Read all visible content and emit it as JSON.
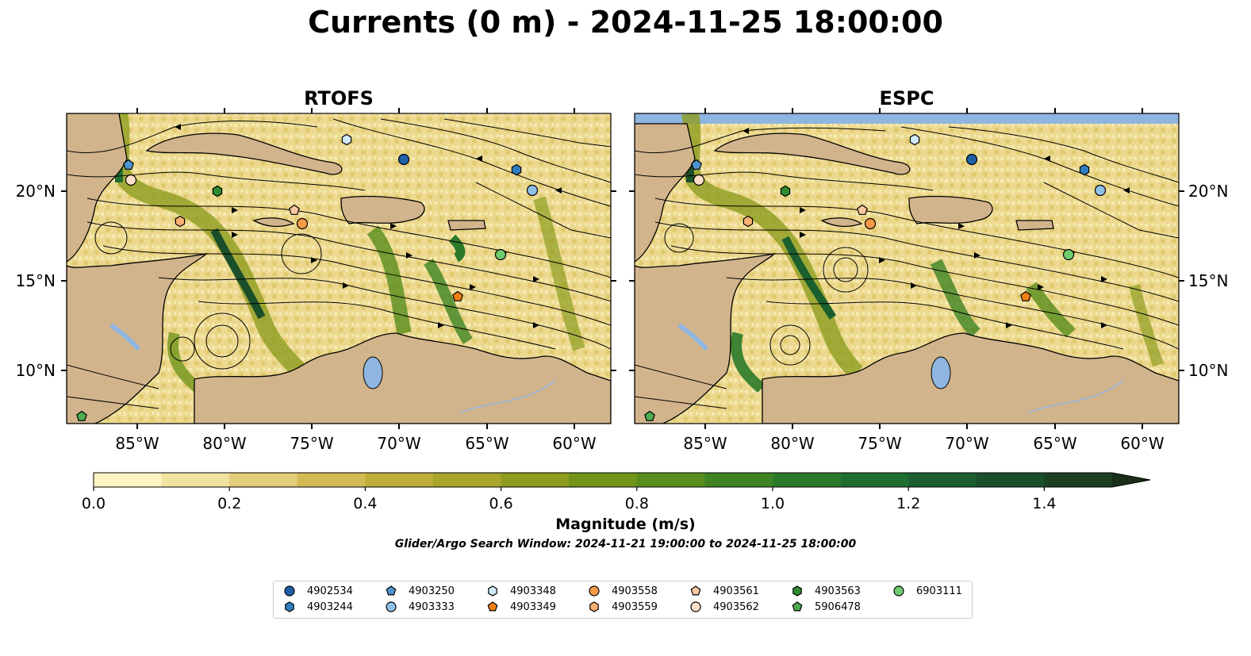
{
  "title": "Currents (0 m) - 2024-11-25 18:00:00",
  "panels": [
    {
      "title": "RTOFS"
    },
    {
      "title": "ESPC"
    }
  ],
  "lon_ticks": [
    "85°W",
    "80°W",
    "75°W",
    "70°W",
    "65°W",
    "60°W"
  ],
  "lat_ticks": [
    "20°N",
    "15°N",
    "10°N"
  ],
  "colorbar": {
    "label": "Magnitude (m/s)",
    "ticks": [
      "0.0",
      "0.2",
      "0.4",
      "0.6",
      "0.8",
      "1.0",
      "1.2",
      "1.4"
    ],
    "colors": [
      "#fdf6c3",
      "#f1e2a0",
      "#e2cd79",
      "#d2bb55",
      "#bfae3a",
      "#a9a42a",
      "#8d9c1f",
      "#719419",
      "#588c1c",
      "#3f8323",
      "#2b7a2a",
      "#1f6e30",
      "#1b5f2f",
      "#1b4f2a",
      "#1b3f22",
      "#1a2f19"
    ]
  },
  "search_window": "Glider/Argo Search Window: 2024-11-21 19:00:00 to 2024-11-25 18:00:00",
  "legend": [
    {
      "id": "4902534",
      "marker": "circle",
      "color": "#1f5fa6"
    },
    {
      "id": "4903244",
      "marker": "hexagon",
      "color": "#2f7fc0"
    },
    {
      "id": "4903250",
      "marker": "pentagon",
      "color": "#4f94d0"
    },
    {
      "id": "4903333",
      "marker": "circle",
      "color": "#8fbfe6"
    },
    {
      "id": "4903348",
      "marker": "hexagon",
      "color": "#cfe8fa"
    },
    {
      "id": "4903349",
      "marker": "pentagon",
      "color": "#f07f12"
    },
    {
      "id": "4903558",
      "marker": "circle",
      "color": "#f59a45"
    },
    {
      "id": "4903559",
      "marker": "hexagon",
      "color": "#f8b073"
    },
    {
      "id": "4903561",
      "marker": "pentagon",
      "color": "#fac7a0"
    },
    {
      "id": "4903562",
      "marker": "circle",
      "color": "#fde0c8"
    },
    {
      "id": "4903563",
      "marker": "hexagon",
      "color": "#2e8b2e"
    },
    {
      "id": "5906478",
      "marker": "pentagon",
      "color": "#4fab4f"
    },
    {
      "id": "6903111",
      "marker": "circle",
      "color": "#6fcb6f"
    }
  ],
  "colors": {
    "land": "#d2b48c",
    "water_low": "#fdf6c3",
    "lake": "#8fb6e0",
    "river": "#9bb7d4"
  }
}
